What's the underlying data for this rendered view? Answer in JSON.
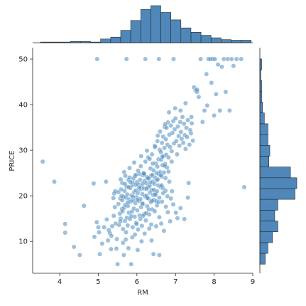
{
  "chart_data": {
    "type": "scatter",
    "title": "",
    "xlabel": "RM",
    "ylabel": "PRICE",
    "xlim": [
      3.3,
      9.0
    ],
    "ylim": [
      3.0,
      52.5
    ],
    "x_ticks": [
      "4",
      "5",
      "6",
      "7",
      "8",
      "9"
    ],
    "y_ticks": [
      "10",
      "20",
      "30",
      "40",
      "50"
    ],
    "grid": false,
    "legend": "none",
    "point_color": "#4c8dbf",
    "point_edge_color": "#ffffff",
    "bar_color": "#4f87b8",
    "bar_edge_color": "#1f2a33",
    "points": [
      [
        3.56,
        27.5
      ],
      [
        3.86,
        23.1
      ],
      [
        4.14,
        13.8
      ],
      [
        4.14,
        11.9
      ],
      [
        4.37,
        8.8
      ],
      [
        4.52,
        7.0
      ],
      [
        4.63,
        17.8
      ],
      [
        4.88,
        22.7
      ],
      [
        4.9,
        11.0
      ],
      [
        4.96,
        14.2
      ],
      [
        4.97,
        50.0
      ],
      [
        5.0,
        13.1
      ],
      [
        5.02,
        12.0
      ],
      [
        5.04,
        7.2
      ],
      [
        5.1,
        9.5
      ],
      [
        5.15,
        13.1
      ],
      [
        5.2,
        23.1
      ],
      [
        5.22,
        14.8
      ],
      [
        5.25,
        10.2
      ],
      [
        5.27,
        12.5
      ],
      [
        5.3,
        11.8
      ],
      [
        5.33,
        8.3
      ],
      [
        5.36,
        13.3
      ],
      [
        5.39,
        19.5
      ],
      [
        5.4,
        15.6
      ],
      [
        5.41,
        20.5
      ],
      [
        5.43,
        17.5
      ],
      [
        5.44,
        21.0
      ],
      [
        5.45,
        13.9
      ],
      [
        5.47,
        8.4
      ],
      [
        5.5,
        5.0
      ],
      [
        5.52,
        18.2
      ],
      [
        5.54,
        13.6
      ],
      [
        5.56,
        16.1
      ],
      [
        5.57,
        19.4
      ],
      [
        5.58,
        15.0
      ],
      [
        5.6,
        20.0
      ],
      [
        5.61,
        17.1
      ],
      [
        5.62,
        22.8
      ],
      [
        5.63,
        16.6
      ],
      [
        5.64,
        12.7
      ],
      [
        5.65,
        19.8
      ],
      [
        5.66,
        7.0
      ],
      [
        5.67,
        17.4
      ],
      [
        5.68,
        21.1
      ],
      [
        5.69,
        14.5
      ],
      [
        5.7,
        18.0
      ],
      [
        5.71,
        10.4
      ],
      [
        5.72,
        19.6
      ],
      [
        5.73,
        22.0
      ],
      [
        5.74,
        15.2
      ],
      [
        5.75,
        20.3
      ],
      [
        5.76,
        13.5
      ],
      [
        5.77,
        17.8
      ],
      [
        5.78,
        23.5
      ],
      [
        5.79,
        16.3
      ],
      [
        5.8,
        19.2
      ],
      [
        5.81,
        24.0
      ],
      [
        5.82,
        14.9
      ],
      [
        5.83,
        21.7
      ],
      [
        5.84,
        18.7
      ],
      [
        5.85,
        5.0
      ],
      [
        5.86,
        20.1
      ],
      [
        5.87,
        16.5
      ],
      [
        5.88,
        22.3
      ],
      [
        5.89,
        13.1
      ],
      [
        5.9,
        19.0
      ],
      [
        5.91,
        23.8
      ],
      [
        5.92,
        17.2
      ],
      [
        5.93,
        20.8
      ],
      [
        5.94,
        15.4
      ],
      [
        5.95,
        24.3
      ],
      [
        5.96,
        18.4
      ],
      [
        5.97,
        21.2
      ],
      [
        5.98,
        14.1
      ],
      [
        5.99,
        19.7
      ],
      [
        6.0,
        23.0
      ],
      [
        6.01,
        16.8
      ],
      [
        6.02,
        20.6
      ],
      [
        6.03,
        12.6
      ],
      [
        6.04,
        22.5
      ],
      [
        6.05,
        18.9
      ],
      [
        6.06,
        24.8
      ],
      [
        6.07,
        15.7
      ],
      [
        6.08,
        21.4
      ],
      [
        6.09,
        19.3
      ],
      [
        6.1,
        26.5
      ],
      [
        6.11,
        17.5
      ],
      [
        6.12,
        22.0
      ],
      [
        6.13,
        13.4
      ],
      [
        6.14,
        20.4
      ],
      [
        6.15,
        24.5
      ],
      [
        6.16,
        18.2
      ],
      [
        6.17,
        25.0
      ],
      [
        6.18,
        21.6
      ],
      [
        6.19,
        16.0
      ],
      [
        6.2,
        23.3
      ],
      [
        6.21,
        19.9
      ],
      [
        6.22,
        27.5
      ],
      [
        6.23,
        14.6
      ],
      [
        6.24,
        22.8
      ],
      [
        6.25,
        20.0
      ],
      [
        6.26,
        24.1
      ],
      [
        6.27,
        17.7
      ],
      [
        6.28,
        21.9
      ],
      [
        6.29,
        28.4
      ],
      [
        6.3,
        19.4
      ],
      [
        6.31,
        23.7
      ],
      [
        6.32,
        15.9
      ],
      [
        6.33,
        22.2
      ],
      [
        6.34,
        20.7
      ],
      [
        6.35,
        26.0
      ],
      [
        6.36,
        18.6
      ],
      [
        6.37,
        24.4
      ],
      [
        6.38,
        21.3
      ],
      [
        6.39,
        29.1
      ],
      [
        6.4,
        17.0
      ],
      [
        6.41,
        23.1
      ],
      [
        6.42,
        20.2
      ],
      [
        6.43,
        25.6
      ],
      [
        6.44,
        19.1
      ],
      [
        6.45,
        22.6
      ],
      [
        6.46,
        31.0
      ],
      [
        6.47,
        24.0
      ],
      [
        6.48,
        20.5
      ],
      [
        6.49,
        27.1
      ],
      [
        6.5,
        18.8
      ],
      [
        6.51,
        23.4
      ],
      [
        6.52,
        21.0
      ],
      [
        6.53,
        26.4
      ],
      [
        6.54,
        33.2
      ],
      [
        6.55,
        22.3
      ],
      [
        6.56,
        28.0
      ],
      [
        6.57,
        24.7
      ],
      [
        6.58,
        19.6
      ],
      [
        6.59,
        30.1
      ],
      [
        6.6,
        25.2
      ],
      [
        6.61,
        22.0
      ],
      [
        6.62,
        29.6
      ],
      [
        6.63,
        27.9
      ],
      [
        6.64,
        24.2
      ],
      [
        6.65,
        31.6
      ],
      [
        6.66,
        26.7
      ],
      [
        6.67,
        21.7
      ],
      [
        6.68,
        33.0
      ],
      [
        6.69,
        28.7
      ],
      [
        6.7,
        25.1
      ],
      [
        6.71,
        30.5
      ],
      [
        6.72,
        35.1
      ],
      [
        6.73,
        27.0
      ],
      [
        6.74,
        23.9
      ],
      [
        6.75,
        32.4
      ],
      [
        6.76,
        29.0
      ],
      [
        6.77,
        34.9
      ],
      [
        6.78,
        26.2
      ],
      [
        6.79,
        31.2
      ],
      [
        6.8,
        36.1
      ],
      [
        6.82,
        28.4
      ],
      [
        6.84,
        33.4
      ],
      [
        6.86,
        30.7
      ],
      [
        6.88,
        35.4
      ],
      [
        6.9,
        29.8
      ],
      [
        6.92,
        33.8
      ],
      [
        6.94,
        36.4
      ],
      [
        6.96,
        31.5
      ],
      [
        6.98,
        34.6
      ],
      [
        7.0,
        37.0
      ],
      [
        7.02,
        32.0
      ],
      [
        7.04,
        29.1
      ],
      [
        7.06,
        35.2
      ],
      [
        7.08,
        33.1
      ],
      [
        7.1,
        31.0
      ],
      [
        7.12,
        36.2
      ],
      [
        7.14,
        34.0
      ],
      [
        7.16,
        32.5
      ],
      [
        7.18,
        37.3
      ],
      [
        7.2,
        31.6
      ],
      [
        7.22,
        35.8
      ],
      [
        7.24,
        33.3
      ],
      [
        7.26,
        30.3
      ],
      [
        7.28,
        34.9
      ],
      [
        7.3,
        32.9
      ],
      [
        7.32,
        36.6
      ],
      [
        7.34,
        22.8
      ],
      [
        7.36,
        31.2
      ],
      [
        7.38,
        34.4
      ],
      [
        7.4,
        33.7
      ],
      [
        7.42,
        35.9
      ],
      [
        7.45,
        32.1
      ],
      [
        7.48,
        43.8
      ],
      [
        7.52,
        43.1
      ],
      [
        7.56,
        42.8
      ],
      [
        7.6,
        41.7
      ],
      [
        7.65,
        50.0
      ],
      [
        7.7,
        36.2
      ],
      [
        7.75,
        38.7
      ],
      [
        7.8,
        46.7
      ],
      [
        7.82,
        39.8
      ],
      [
        7.85,
        50.0
      ],
      [
        7.9,
        50.0
      ],
      [
        7.93,
        44.8
      ],
      [
        7.96,
        50.0
      ],
      [
        8.0,
        37.6
      ],
      [
        8.02,
        50.0
      ],
      [
        8.05,
        42.3
      ],
      [
        8.1,
        48.8
      ],
      [
        8.15,
        38.7
      ],
      [
        8.2,
        48.3
      ],
      [
        8.25,
        50.0
      ],
      [
        8.3,
        42.8
      ],
      [
        8.35,
        50.0
      ],
      [
        8.4,
        38.7
      ],
      [
        8.45,
        50.0
      ],
      [
        8.5,
        48.5
      ],
      [
        8.58,
        50.0
      ],
      [
        8.7,
        50.0
      ],
      [
        8.78,
        21.9
      ],
      [
        5.73,
        50.0
      ],
      [
        6.22,
        50.0
      ],
      [
        6.57,
        50.0
      ],
      [
        6.95,
        50.0
      ],
      [
        5.34,
        11.2
      ],
      [
        5.48,
        10.5
      ],
      [
        5.64,
        9.7
      ],
      [
        5.78,
        8.5
      ],
      [
        5.88,
        10.9
      ],
      [
        5.95,
        11.5
      ],
      [
        6.02,
        8.1
      ],
      [
        6.12,
        10.0
      ],
      [
        6.2,
        11.7
      ],
      [
        6.32,
        12.8
      ],
      [
        6.38,
        10.2
      ],
      [
        6.43,
        7.2
      ],
      [
        6.5,
        13.3
      ],
      [
        6.58,
        7.0
      ],
      [
        6.63,
        13.9
      ],
      [
        6.7,
        12.3
      ],
      [
        6.8,
        16.4
      ],
      [
        6.86,
        14.4
      ],
      [
        6.94,
        18.1
      ],
      [
        7.05,
        15.1
      ],
      [
        7.13,
        17.3
      ],
      [
        7.23,
        14.9
      ],
      [
        7.32,
        19.6
      ],
      [
        5.67,
        25.2
      ],
      [
        5.81,
        26.1
      ],
      [
        5.93,
        27.3
      ],
      [
        6.03,
        25.5
      ],
      [
        6.11,
        28.7
      ],
      [
        6.19,
        24.7
      ],
      [
        6.26,
        29.9
      ],
      [
        6.33,
        28.1
      ],
      [
        6.41,
        27.1
      ],
      [
        6.47,
        30.7
      ],
      [
        6.53,
        32.0
      ],
      [
        6.6,
        34.1
      ],
      [
        6.66,
        28.6
      ],
      [
        6.73,
        35.7
      ],
      [
        6.83,
        38.3
      ],
      [
        6.99,
        39.2
      ],
      [
        7.13,
        38.7
      ],
      [
        7.26,
        40.3
      ],
      [
        7.41,
        37.3
      ],
      [
        7.56,
        43.3
      ],
      [
        5.57,
        14.4
      ],
      [
        5.72,
        12.0
      ],
      [
        5.85,
        15.5
      ],
      [
        5.99,
        13.8
      ],
      [
        6.09,
        14.9
      ],
      [
        6.16,
        15.6
      ],
      [
        6.24,
        16.2
      ],
      [
        6.31,
        17.0
      ],
      [
        6.37,
        13.7
      ],
      [
        6.46,
        16.6
      ],
      [
        6.52,
        17.9
      ],
      [
        6.58,
        15.3
      ],
      [
        6.65,
        18.7
      ],
      [
        6.75,
        17.6
      ],
      [
        6.88,
        19.4
      ],
      [
        7.01,
        16.3
      ],
      [
        5.59,
        21.4
      ],
      [
        5.69,
        22.6
      ],
      [
        5.79,
        21.9
      ],
      [
        5.89,
        22.9
      ],
      [
        5.97,
        22.4
      ],
      [
        6.06,
        21.8
      ],
      [
        6.15,
        22.7
      ],
      [
        6.25,
        21.5
      ],
      [
        6.35,
        22.9
      ],
      [
        6.44,
        21.3
      ],
      [
        6.54,
        23.6
      ],
      [
        6.64,
        22.3
      ],
      [
        6.74,
        21.1
      ],
      [
        6.84,
        23.1
      ],
      [
        5.62,
        19.0
      ],
      [
        5.76,
        18.5
      ],
      [
        5.9,
        19.8
      ],
      [
        6.01,
        19.1
      ],
      [
        6.14,
        18.3
      ],
      [
        6.27,
        19.5
      ],
      [
        6.39,
        18.9
      ],
      [
        6.48,
        20.2
      ],
      [
        6.56,
        18.6
      ],
      [
        6.68,
        20.6
      ],
      [
        6.79,
        19.9
      ],
      [
        6.91,
        21.0
      ],
      [
        5.52,
        20.8
      ],
      [
        5.58,
        23.6
      ],
      [
        5.7,
        24.4
      ],
      [
        5.83,
        23.0
      ],
      [
        5.97,
        24.6
      ],
      [
        6.08,
        23.5
      ],
      [
        6.18,
        24.9
      ],
      [
        6.29,
        23.9
      ],
      [
        6.4,
        24.6
      ],
      [
        6.51,
        25.0
      ],
      [
        6.62,
        24.5
      ],
      [
        6.72,
        26.6
      ],
      [
        6.82,
        25.3
      ],
      [
        6.9,
        27.5
      ]
    ],
    "x_hist": {
      "bins": [
        3.5,
        3.76,
        4.02,
        4.28,
        4.54,
        4.8,
        5.06,
        5.32,
        5.58,
        5.84,
        6.1,
        6.36,
        6.62,
        6.88,
        7.14,
        7.4,
        7.66,
        7.92,
        8.18,
        8.44,
        8.7
      ],
      "counts": [
        1,
        1,
        1,
        2,
        2,
        1,
        6,
        9,
        20,
        36,
        54,
        60,
        49,
        37,
        24,
        17,
        12,
        8,
        5,
        4,
        4
      ]
    },
    "y_hist": {
      "bins": [
        5,
        7.37,
        9.74,
        12.11,
        14.48,
        16.85,
        19.22,
        21.59,
        23.96,
        26.33,
        28.7,
        31.07,
        33.44,
        35.81,
        38.18,
        40.55,
        42.92,
        45.29,
        47.66,
        50.03
      ],
      "counts": [
        12,
        18,
        28,
        40,
        33,
        40,
        78,
        82,
        68,
        20,
        22,
        18,
        18,
        10,
        6,
        4,
        4,
        2,
        4,
        18
      ]
    }
  }
}
